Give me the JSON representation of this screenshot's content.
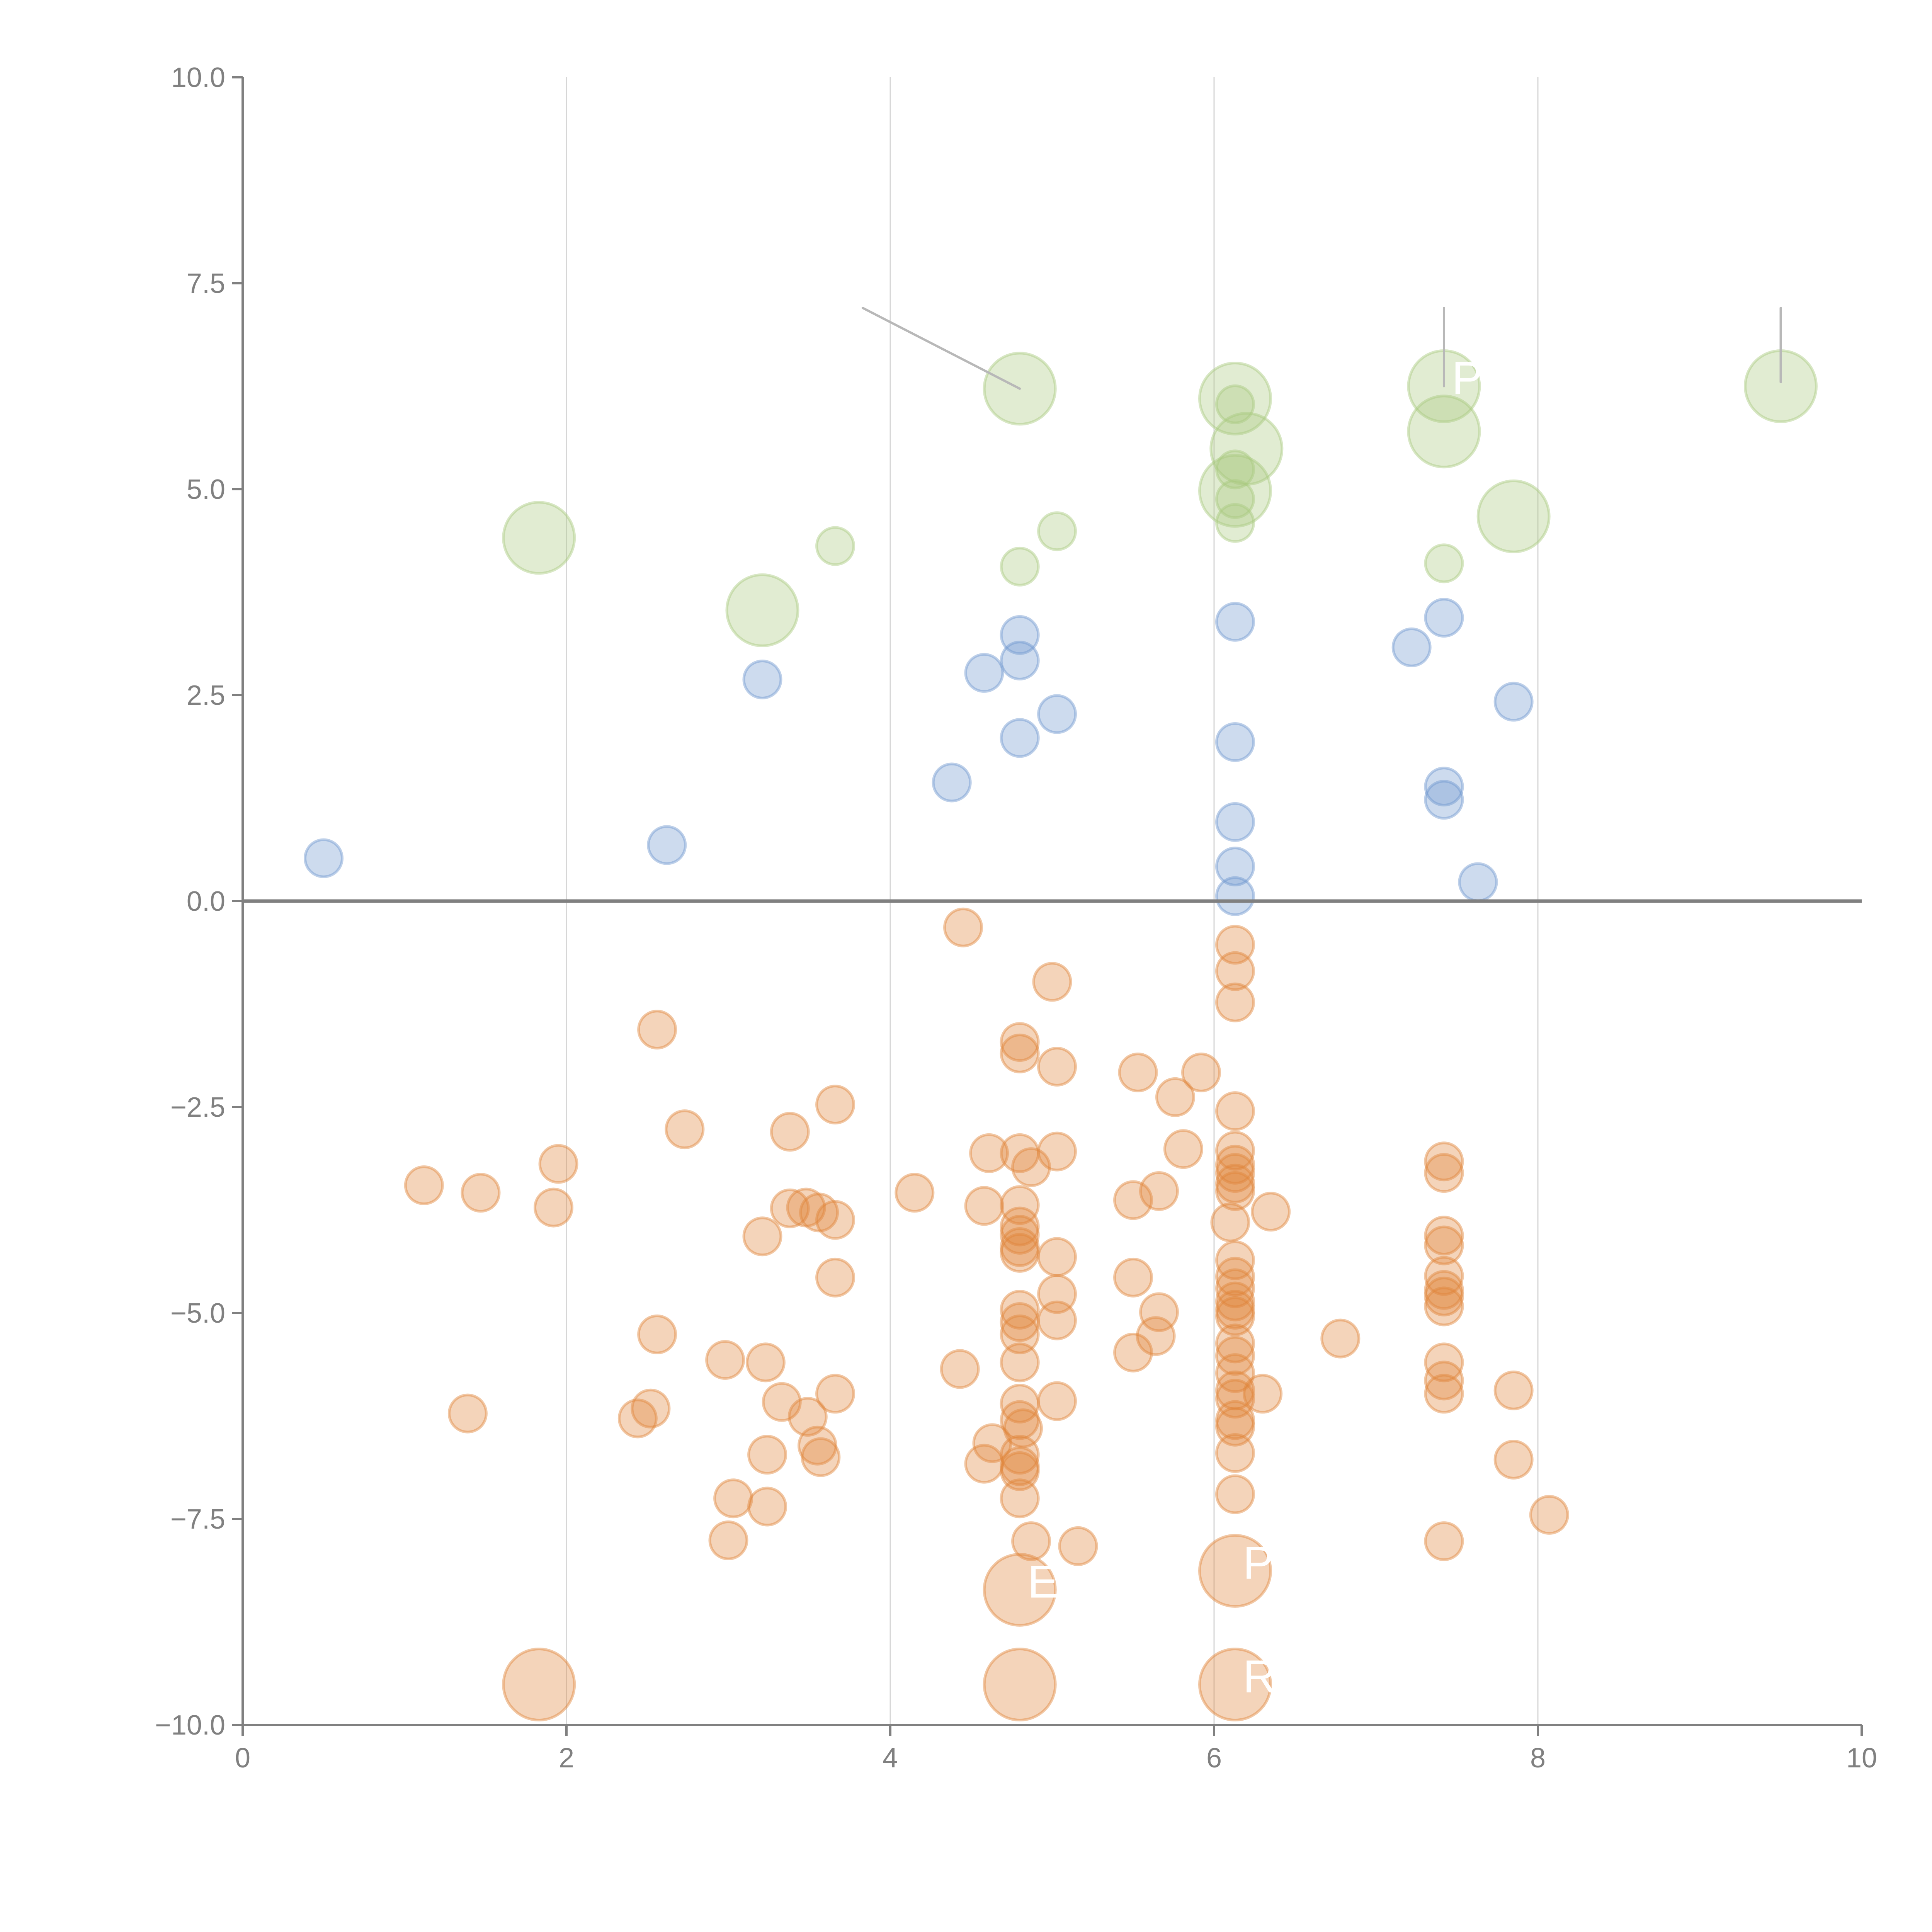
{
  "chart_data": {
    "type": "scatter",
    "title": "",
    "xlabel": "",
    "ylabel": "",
    "xlim": [
      0,
      10
    ],
    "ylim": [
      -10,
      10
    ],
    "grid": "vertical",
    "legend": "none",
    "x_ticks": [
      "0",
      "2",
      "4",
      "6",
      "8",
      "10"
    ],
    "y_ticks": [
      "10.0",
      "7.5",
      "5.0",
      "2.5",
      "0.0",
      "−2.5",
      "−5.0",
      "−7.5",
      "−10.0"
    ],
    "colors": {
      "blue": "#6f97cf",
      "green": "#a9c97e",
      "orange": "#e0853a",
      "leader": "#b8b8b8"
    },
    "series": [
      {
        "name": "blue",
        "points": [
          {
            "x": 0.5,
            "y": 0.52,
            "s": 1
          },
          {
            "x": 2.62,
            "y": 0.68,
            "s": 1
          },
          {
            "x": 3.21,
            "y": 2.69,
            "s": 1
          },
          {
            "x": 4.38,
            "y": 1.44,
            "s": 1
          },
          {
            "x": 4.58,
            "y": 2.77,
            "s": 1
          },
          {
            "x": 4.8,
            "y": 3.23,
            "s": 1
          },
          {
            "x": 4.8,
            "y": 2.92,
            "s": 1
          },
          {
            "x": 4.8,
            "y": 1.98,
            "s": 1
          },
          {
            "x": 5.03,
            "y": 2.27,
            "s": 1
          },
          {
            "x": 6.13,
            "y": 3.39,
            "s": 1
          },
          {
            "x": 6.13,
            "y": 1.93,
            "s": 1
          },
          {
            "x": 6.13,
            "y": 0.96,
            "s": 1
          },
          {
            "x": 6.13,
            "y": 0.42,
            "s": 1
          },
          {
            "x": 6.13,
            "y": 0.06,
            "s": 1
          },
          {
            "x": 7.22,
            "y": 3.08,
            "s": 1
          },
          {
            "x": 7.42,
            "y": 3.44,
            "s": 1
          },
          {
            "x": 7.42,
            "y": 1.39,
            "s": 1
          },
          {
            "x": 7.42,
            "y": 1.23,
            "s": 1
          },
          {
            "x": 7.63,
            "y": 0.23,
            "s": 1
          },
          {
            "x": 7.85,
            "y": 2.42,
            "s": 1
          }
        ]
      },
      {
        "name": "green",
        "points": [
          {
            "x": 1.83,
            "y": 4.41,
            "s": 3
          },
          {
            "x": 3.21,
            "y": 3.53,
            "s": 3
          },
          {
            "x": 3.66,
            "y": 4.31,
            "s": 1
          },
          {
            "x": 4.8,
            "y": 6.22,
            "s": 3
          },
          {
            "x": 4.8,
            "y": 4.06,
            "s": 1
          },
          {
            "x": 5.03,
            "y": 4.49,
            "s": 1
          },
          {
            "x": 6.13,
            "y": 6.1,
            "s": 3
          },
          {
            "x": 6.13,
            "y": 6.03,
            "s": 1
          },
          {
            "x": 6.2,
            "y": 5.49,
            "s": 3
          },
          {
            "x": 6.13,
            "y": 4.98,
            "s": 3
          },
          {
            "x": 6.13,
            "y": 5.24,
            "s": 1
          },
          {
            "x": 6.13,
            "y": 4.88,
            "s": 1
          },
          {
            "x": 6.13,
            "y": 4.59,
            "s": 1
          },
          {
            "x": 7.42,
            "y": 6.25,
            "s": 3
          },
          {
            "x": 7.42,
            "y": 5.7,
            "s": 3
          },
          {
            "x": 7.42,
            "y": 4.1,
            "s": 1
          },
          {
            "x": 7.85,
            "y": 4.67,
            "s": 3
          },
          {
            "x": 9.5,
            "y": 6.25,
            "s": 3
          }
        ]
      },
      {
        "name": "orange",
        "points": [
          {
            "x": 4.45,
            "y": -0.32,
            "s": 1
          },
          {
            "x": 5.0,
            "y": -0.98,
            "s": 1
          },
          {
            "x": 2.56,
            "y": -1.56,
            "s": 1
          },
          {
            "x": 4.8,
            "y": -1.71,
            "s": 1
          },
          {
            "x": 4.8,
            "y": -1.85,
            "s": 1
          },
          {
            "x": 5.03,
            "y": -2.01,
            "s": 1
          },
          {
            "x": 5.53,
            "y": -2.08,
            "s": 1
          },
          {
            "x": 5.92,
            "y": -2.08,
            "s": 1
          },
          {
            "x": 5.76,
            "y": -2.38,
            "s": 1
          },
          {
            "x": 3.66,
            "y": -2.47,
            "s": 1
          },
          {
            "x": 2.73,
            "y": -2.77,
            "s": 1
          },
          {
            "x": 3.38,
            "y": -2.8,
            "s": 1
          },
          {
            "x": 4.61,
            "y": -3.06,
            "s": 1
          },
          {
            "x": 4.8,
            "y": -3.06,
            "s": 1
          },
          {
            "x": 4.87,
            "y": -3.23,
            "s": 1
          },
          {
            "x": 5.03,
            "y": -3.04,
            "s": 1
          },
          {
            "x": 5.81,
            "y": -3.01,
            "s": 1
          },
          {
            "x": 1.95,
            "y": -3.19,
            "s": 1
          },
          {
            "x": 1.12,
            "y": -3.45,
            "s": 1
          },
          {
            "x": 1.47,
            "y": -3.54,
            "s": 1
          },
          {
            "x": 1.92,
            "y": -3.72,
            "s": 1
          },
          {
            "x": 4.15,
            "y": -3.54,
            "s": 1
          },
          {
            "x": 4.58,
            "y": -3.7,
            "s": 1
          },
          {
            "x": 5.66,
            "y": -3.52,
            "s": 1
          },
          {
            "x": 5.5,
            "y": -3.63,
            "s": 1
          },
          {
            "x": 3.38,
            "y": -3.73,
            "s": 1
          },
          {
            "x": 3.48,
            "y": -3.72,
            "s": 1
          },
          {
            "x": 3.56,
            "y": -3.78,
            "s": 1
          },
          {
            "x": 3.66,
            "y": -3.87,
            "s": 1
          },
          {
            "x": 3.21,
            "y": -4.07,
            "s": 1
          },
          {
            "x": 4.8,
            "y": -3.69,
            "s": 1
          },
          {
            "x": 4.8,
            "y": -3.95,
            "s": 1
          },
          {
            "x": 4.8,
            "y": -4.05,
            "s": 1
          },
          {
            "x": 4.8,
            "y": -4.2,
            "s": 1
          },
          {
            "x": 4.8,
            "y": -4.27,
            "s": 1
          },
          {
            "x": 5.03,
            "y": -4.32,
            "s": 1
          },
          {
            "x": 3.66,
            "y": -4.57,
            "s": 1
          },
          {
            "x": 5.5,
            "y": -4.57,
            "s": 1
          },
          {
            "x": 5.03,
            "y": -4.77,
            "s": 1
          },
          {
            "x": 4.8,
            "y": -4.96,
            "s": 1
          },
          {
            "x": 4.8,
            "y": -5.11,
            "s": 1
          },
          {
            "x": 4.8,
            "y": -5.26,
            "s": 1
          },
          {
            "x": 5.03,
            "y": -5.09,
            "s": 1
          },
          {
            "x": 5.66,
            "y": -4.99,
            "s": 1
          },
          {
            "x": 5.64,
            "y": -5.28,
            "s": 1
          },
          {
            "x": 5.5,
            "y": -5.48,
            "s": 1
          },
          {
            "x": 2.56,
            "y": -5.26,
            "s": 1
          },
          {
            "x": 2.98,
            "y": -5.57,
            "s": 1
          },
          {
            "x": 3.23,
            "y": -5.6,
            "s": 1
          },
          {
            "x": 4.8,
            "y": -5.6,
            "s": 1
          },
          {
            "x": 4.43,
            "y": -5.68,
            "s": 1
          },
          {
            "x": 3.66,
            "y": -5.98,
            "s": 1
          },
          {
            "x": 1.39,
            "y": -6.22,
            "s": 1
          },
          {
            "x": 2.52,
            "y": -6.16,
            "s": 1
          },
          {
            "x": 2.44,
            "y": -6.28,
            "s": 1
          },
          {
            "x": 3.33,
            "y": -6.08,
            "s": 1
          },
          {
            "x": 3.49,
            "y": -6.26,
            "s": 1
          },
          {
            "x": 3.55,
            "y": -6.61,
            "s": 1
          },
          {
            "x": 3.57,
            "y": -6.75,
            "s": 1
          },
          {
            "x": 3.24,
            "y": -6.72,
            "s": 1
          },
          {
            "x": 4.8,
            "y": -6.1,
            "s": 1
          },
          {
            "x": 4.8,
            "y": -6.3,
            "s": 1
          },
          {
            "x": 4.82,
            "y": -6.4,
            "s": 1
          },
          {
            "x": 4.8,
            "y": -6.72,
            "s": 1
          },
          {
            "x": 4.63,
            "y": -6.58,
            "s": 1
          },
          {
            "x": 4.58,
            "y": -6.83,
            "s": 1
          },
          {
            "x": 4.8,
            "y": -6.86,
            "s": 1
          },
          {
            "x": 4.8,
            "y": -6.92,
            "s": 1
          },
          {
            "x": 5.03,
            "y": -6.07,
            "s": 1
          },
          {
            "x": 3.03,
            "y": -7.25,
            "s": 1
          },
          {
            "x": 3.24,
            "y": -7.35,
            "s": 1
          },
          {
            "x": 3.0,
            "y": -7.76,
            "s": 1
          },
          {
            "x": 4.8,
            "y": -7.25,
            "s": 1
          },
          {
            "x": 4.87,
            "y": -7.77,
            "s": 1
          },
          {
            "x": 5.16,
            "y": -7.83,
            "s": 1
          },
          {
            "x": 6.13,
            "y": -0.53,
            "s": 1
          },
          {
            "x": 6.13,
            "y": -0.85,
            "s": 1
          },
          {
            "x": 6.13,
            "y": -1.23,
            "s": 1
          },
          {
            "x": 6.13,
            "y": -2.55,
            "s": 1
          },
          {
            "x": 6.13,
            "y": -3.03,
            "s": 1
          },
          {
            "x": 6.13,
            "y": -3.2,
            "s": 1
          },
          {
            "x": 6.13,
            "y": -3.3,
            "s": 1
          },
          {
            "x": 6.13,
            "y": -3.43,
            "s": 1
          },
          {
            "x": 6.13,
            "y": -3.52,
            "s": 1
          },
          {
            "x": 6.35,
            "y": -3.77,
            "s": 1
          },
          {
            "x": 6.1,
            "y": -3.9,
            "s": 1
          },
          {
            "x": 6.13,
            "y": -4.36,
            "s": 1
          },
          {
            "x": 6.13,
            "y": -4.56,
            "s": 1
          },
          {
            "x": 6.13,
            "y": -4.7,
            "s": 1
          },
          {
            "x": 6.13,
            "y": -4.86,
            "s": 1
          },
          {
            "x": 6.13,
            "y": -4.96,
            "s": 1
          },
          {
            "x": 6.13,
            "y": -5.04,
            "s": 1
          },
          {
            "x": 6.13,
            "y": -5.37,
            "s": 1
          },
          {
            "x": 6.13,
            "y": -5.52,
            "s": 1
          },
          {
            "x": 6.13,
            "y": -5.73,
            "s": 1
          },
          {
            "x": 6.13,
            "y": -5.94,
            "s": 1
          },
          {
            "x": 6.13,
            "y": -6.04,
            "s": 1
          },
          {
            "x": 6.13,
            "y": -6.3,
            "s": 1
          },
          {
            "x": 6.13,
            "y": -6.38,
            "s": 1
          },
          {
            "x": 6.3,
            "y": -5.98,
            "s": 1
          },
          {
            "x": 6.13,
            "y": -6.7,
            "s": 1
          },
          {
            "x": 6.13,
            "y": -7.2,
            "s": 1
          },
          {
            "x": 6.78,
            "y": -5.31,
            "s": 1
          },
          {
            "x": 7.42,
            "y": -3.16,
            "s": 1
          },
          {
            "x": 7.42,
            "y": -3.3,
            "s": 1
          },
          {
            "x": 7.42,
            "y": -4.06,
            "s": 1
          },
          {
            "x": 7.42,
            "y": -4.18,
            "s": 1
          },
          {
            "x": 7.42,
            "y": -4.55,
            "s": 1
          },
          {
            "x": 7.42,
            "y": -4.72,
            "s": 1
          },
          {
            "x": 7.42,
            "y": -4.8,
            "s": 1
          },
          {
            "x": 7.42,
            "y": -4.92,
            "s": 1
          },
          {
            "x": 7.42,
            "y": -5.6,
            "s": 1
          },
          {
            "x": 7.42,
            "y": -5.82,
            "s": 1
          },
          {
            "x": 7.42,
            "y": -5.98,
            "s": 1
          },
          {
            "x": 7.42,
            "y": -7.77,
            "s": 1
          },
          {
            "x": 7.85,
            "y": -5.94,
            "s": 1
          },
          {
            "x": 7.85,
            "y": -6.78,
            "s": 1
          },
          {
            "x": 8.07,
            "y": -7.45,
            "s": 1
          },
          {
            "x": 4.8,
            "y": -8.36,
            "s": 3
          },
          {
            "x": 6.13,
            "y": -8.13,
            "s": 3
          },
          {
            "x": 1.83,
            "y": -9.51,
            "s": 3
          },
          {
            "x": 4.8,
            "y": -9.51,
            "s": 3
          },
          {
            "x": 6.13,
            "y": -9.51,
            "s": 3
          }
        ]
      }
    ],
    "annotations": [
      {
        "text": "P",
        "x": 7.42,
        "y": 6.25,
        "visible": "partial"
      },
      {
        "text": "P",
        "x": 6.13,
        "y": -8.13,
        "visible": "partial"
      },
      {
        "text": "E",
        "x": 4.8,
        "y": -8.36,
        "visible": "partial"
      },
      {
        "text": "R",
        "x": 6.13,
        "y": -9.51,
        "visible": "partial"
      }
    ],
    "leader_lines": [
      {
        "from": [
          3.83,
          7.2
        ],
        "to": [
          4.8,
          6.22
        ],
        "color": "gray"
      },
      {
        "from": [
          7.42,
          7.2
        ],
        "to": [
          7.42,
          6.25
        ],
        "color": "gray"
      },
      {
        "from": [
          9.5,
          7.2
        ],
        "to": [
          9.5,
          6.3
        ],
        "color": "gray"
      }
    ]
  }
}
